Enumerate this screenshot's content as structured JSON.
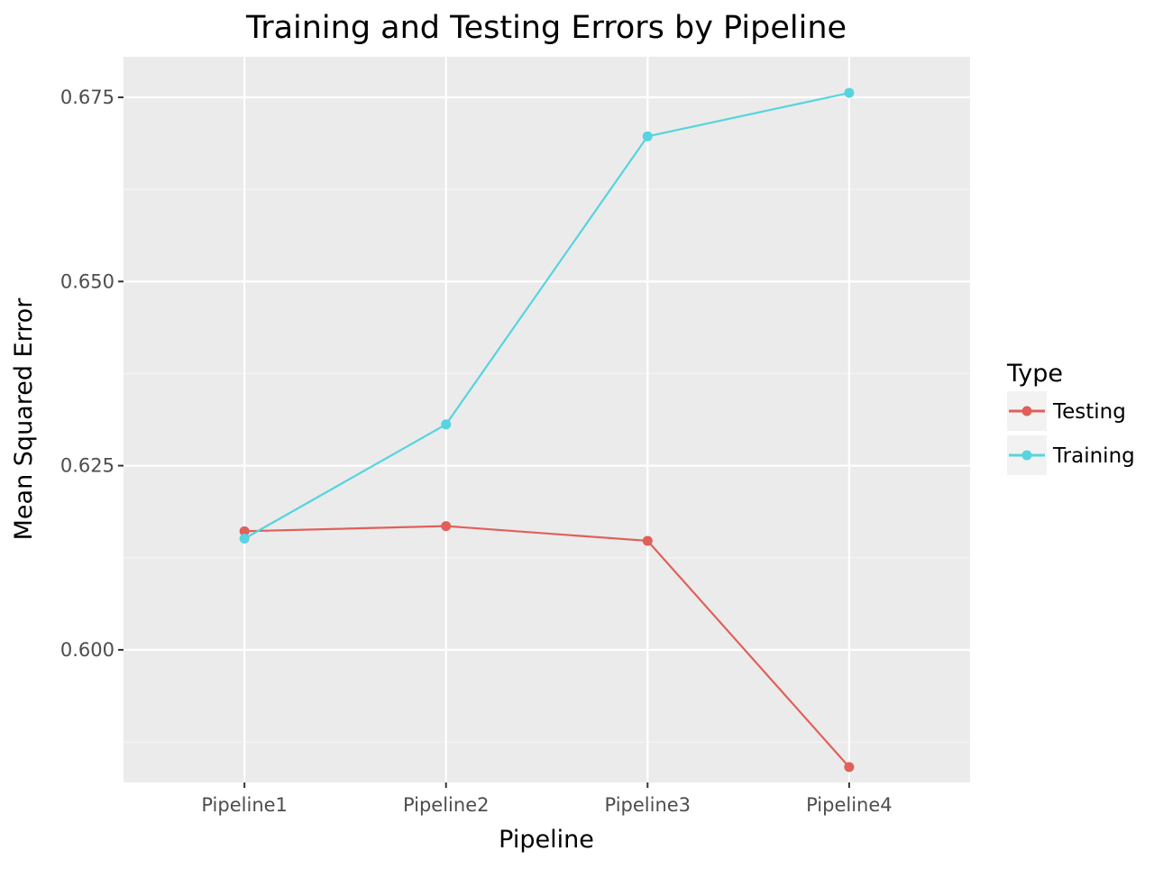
{
  "chart_data": {
    "type": "line",
    "title": "Training and Testing Errors by Pipeline",
    "xlabel": "Pipeline",
    "ylabel": "Mean Squared Error",
    "categories": [
      "Pipeline1",
      "Pipeline2",
      "Pipeline3",
      "Pipeline4"
    ],
    "ylim": [
      0.582,
      0.6805
    ],
    "yticks": [
      0.6,
      0.625,
      0.65,
      0.675
    ],
    "ytick_labels": [
      "0.600",
      "0.625",
      "0.650",
      "0.675"
    ],
    "grid": true,
    "legend": {
      "title": "Type",
      "placement": "right"
    },
    "series": [
      {
        "name": "Testing",
        "color": "#E0605A",
        "values": [
          0.6161,
          0.6168,
          0.6148,
          0.5841
        ]
      },
      {
        "name": "Training",
        "color": "#56D4DF",
        "values": [
          0.6151,
          0.6306,
          0.6697,
          0.6756
        ]
      }
    ]
  },
  "colors": {
    "panel_background": "#EBEBEB",
    "grid_major": "#FFFFFF",
    "grid_minor": "#F5F5F5",
    "legend_key_background": "#F2F2F2",
    "tick_label": "#4D4D4D",
    "text": "#000000"
  }
}
